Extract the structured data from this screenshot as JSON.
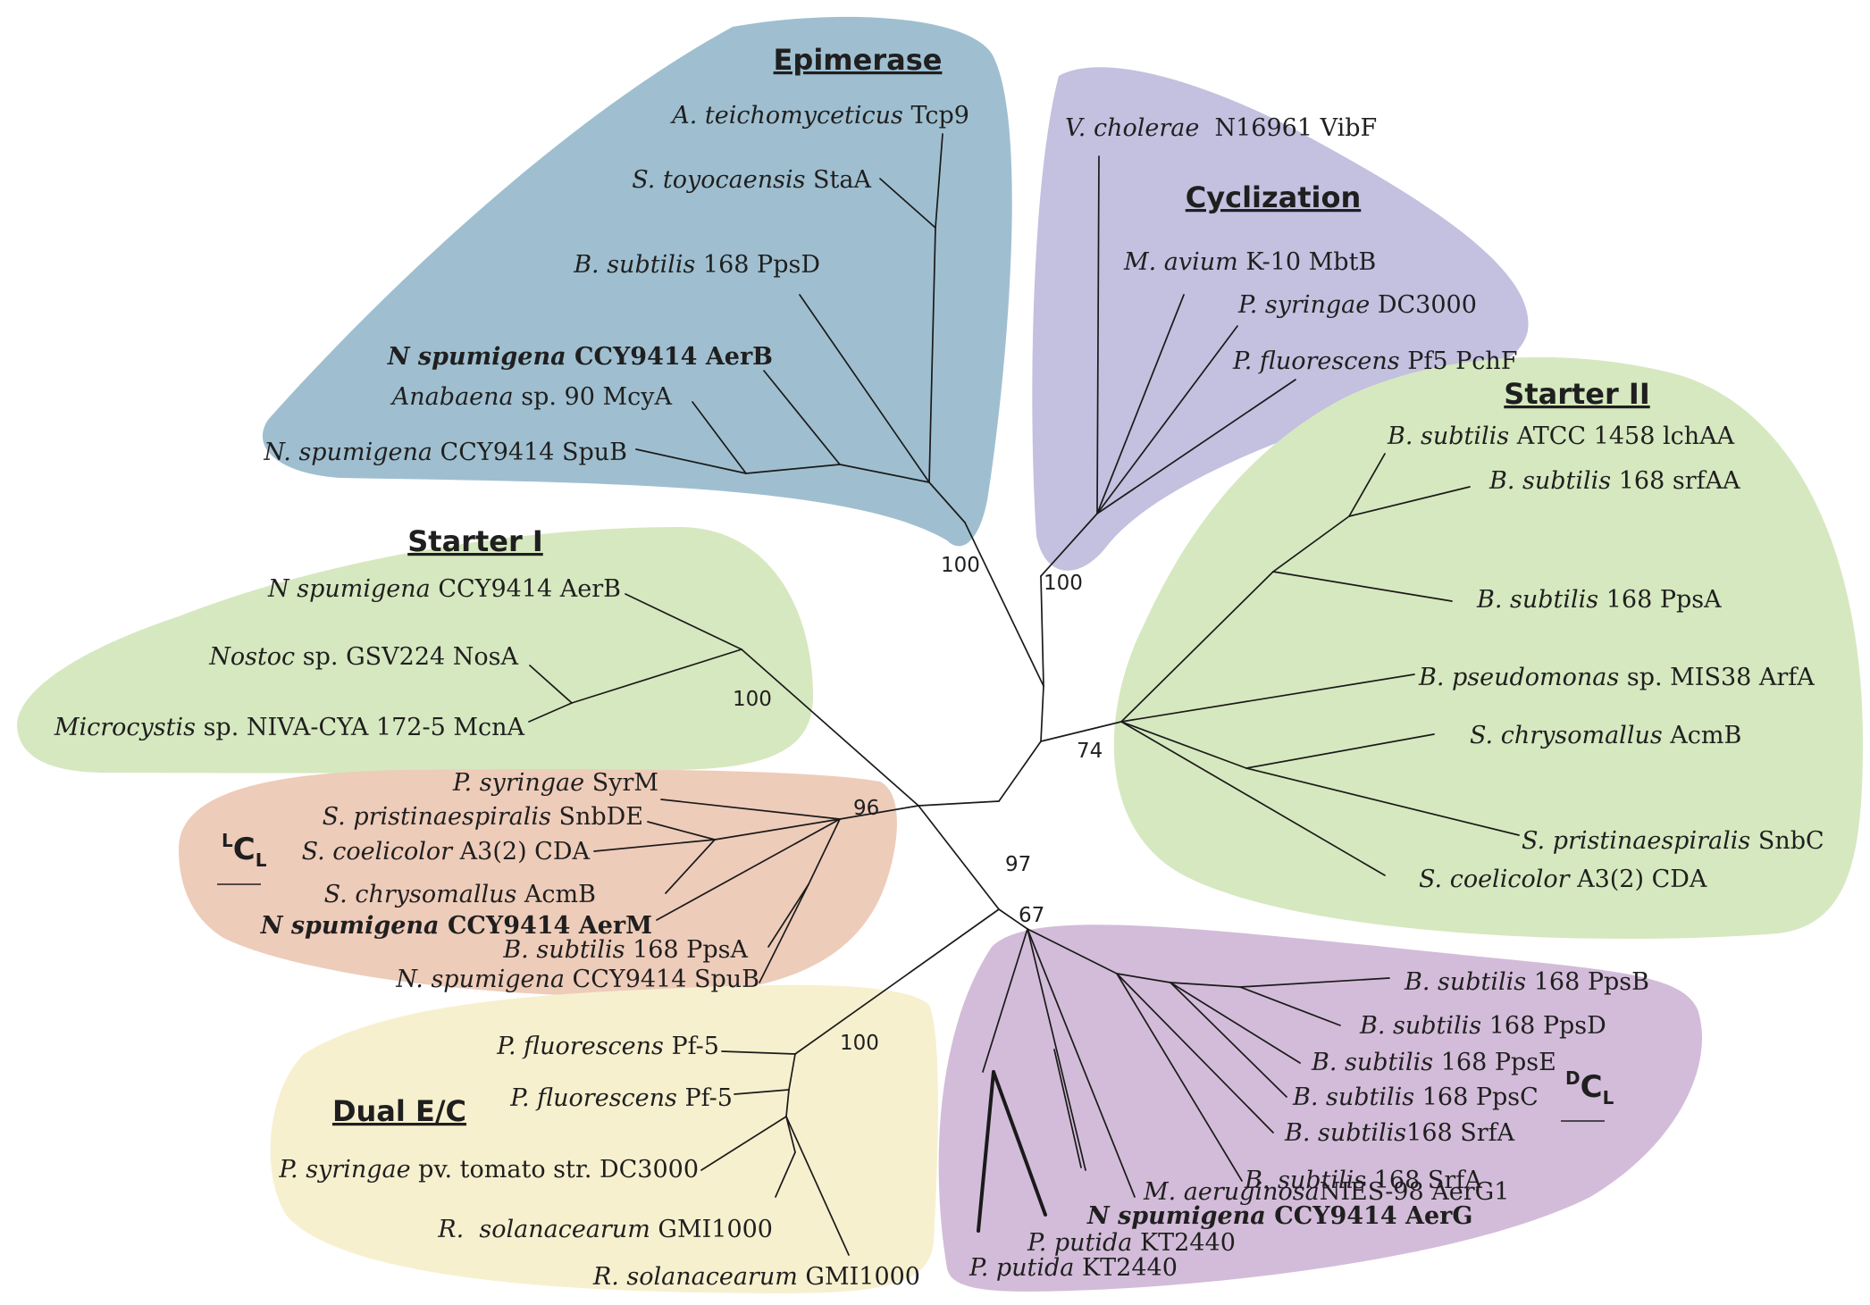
{
  "colors": {
    "epimerase": "#9fbfd0",
    "cyclization": "#c3c0e0",
    "starter": "#d6e8bf",
    "lcl": "#eeccba",
    "dual": "#f7f0cf",
    "dcl": "#d3bcd9"
  },
  "clades": {
    "epimerase": "Epimerase",
    "cyclization": "Cyclization",
    "starter1": "Starter I",
    "starter2": "Starter II",
    "dual": "Dual E/C"
  },
  "domain_labels": {
    "lcl": {
      "sup": "L",
      "main": "C",
      "sub": "L"
    },
    "dcl": {
      "sup": "D",
      "main": "C",
      "sub": "L"
    }
  },
  "bootstrap": [
    "100",
    "100",
    "100",
    "74",
    "96",
    "97",
    "67",
    "100"
  ],
  "leaves": {
    "epi": [
      {
        "species": "A. teichomyceticus",
        "rest": " Tcp9"
      },
      {
        "species": "S. toyocaensis",
        "rest": " StaA"
      },
      {
        "species": "B. subtilis",
        "rest": " 168 PpsD"
      },
      {
        "species": "N spumigena",
        "rest": " CCY9414 AerB"
      },
      {
        "species": "Anabaena",
        "rest": " sp. 90 McyA"
      },
      {
        "species": "N. spumigena",
        "rest": " CCY9414 SpuB"
      }
    ],
    "cyc": [
      {
        "species": "V. cholerae",
        "rest": "  N16961 VibF"
      },
      {
        "species": "M. avium",
        "rest": " K-10 MbtB"
      },
      {
        "species": "P. syringae",
        "rest": " DC3000"
      },
      {
        "species": "P. fluorescens",
        "rest": " Pf5 PchF"
      }
    ],
    "st2": [
      {
        "species": "B. subtilis",
        "rest": " ATCC 1458 lchAA"
      },
      {
        "species": "B. subtilis",
        "rest": " 168 srfAA"
      },
      {
        "species": "B. subtilis",
        "rest": " 168 PpsA"
      },
      {
        "species": "B. pseudomonas",
        "rest": " sp. MIS38 ArfA"
      },
      {
        "species": "S. chrysomallus",
        "rest": " AcmB"
      },
      {
        "species": "S. pristinaespiralis",
        "rest": " SnbC"
      },
      {
        "species": "S. coelicolor",
        "rest": " A3(2) CDA"
      }
    ],
    "st1": [
      {
        "species": "N spumigena",
        "rest": " CCY9414 AerB"
      },
      {
        "species": "Nostoc",
        "rest": " sp. GSV224 NosA"
      },
      {
        "species": "Microcystis",
        "rest": " sp. NIVA-CYA 172-5 McnA"
      }
    ],
    "lcl": [
      {
        "species": "P. syringae",
        "rest": " SyrM"
      },
      {
        "species": "S. pristinaespiralis",
        "rest": " SnbDE"
      },
      {
        "species": "S. coelicolor",
        "rest": " A3(2) CDA"
      },
      {
        "species": "S. chrysomallus",
        "rest": " AcmB"
      },
      {
        "species": "N spumigena",
        "rest": " CCY9414 AerM"
      },
      {
        "species": "B. subtilis",
        "rest": " 168 PpsA"
      },
      {
        "species": "N. spumigena",
        "rest": " CCY9414 SpuB"
      }
    ],
    "dual": [
      {
        "species": "P. fluorescens",
        "rest": " Pf-5"
      },
      {
        "species": "P. fluorescens",
        "rest": " Pf-5"
      },
      {
        "species": "P. syringae",
        "rest": " pv. tomato str. DC3000"
      },
      {
        "species": "R.  solanacearum",
        "rest": " GMI1000"
      },
      {
        "species": "R. solanacearum",
        "rest": " GMI1000"
      }
    ],
    "dcl": [
      {
        "species": "B. subtilis",
        "rest": " 168 PpsB"
      },
      {
        "species": "B. subtilis",
        "rest": " 168 PpsD"
      },
      {
        "species": "B. subtilis",
        "rest": " 168 PpsE"
      },
      {
        "species": "B. subtilis",
        "rest": " 168 PpsC"
      },
      {
        "species": "B. subtilis",
        "rest": "168 SrfA"
      },
      {
        "species": "B. subtilis",
        "rest": " 168 SrfA"
      },
      {
        "species": "M. aeruginosa",
        "rest": "NIES-98 AerG1"
      },
      {
        "species": "N spumigena",
        "rest": " CCY9414 AerG"
      },
      {
        "species": "P. putida",
        "rest": " KT2440"
      },
      {
        "species": "P. putida",
        "rest": " KT2440"
      }
    ]
  }
}
